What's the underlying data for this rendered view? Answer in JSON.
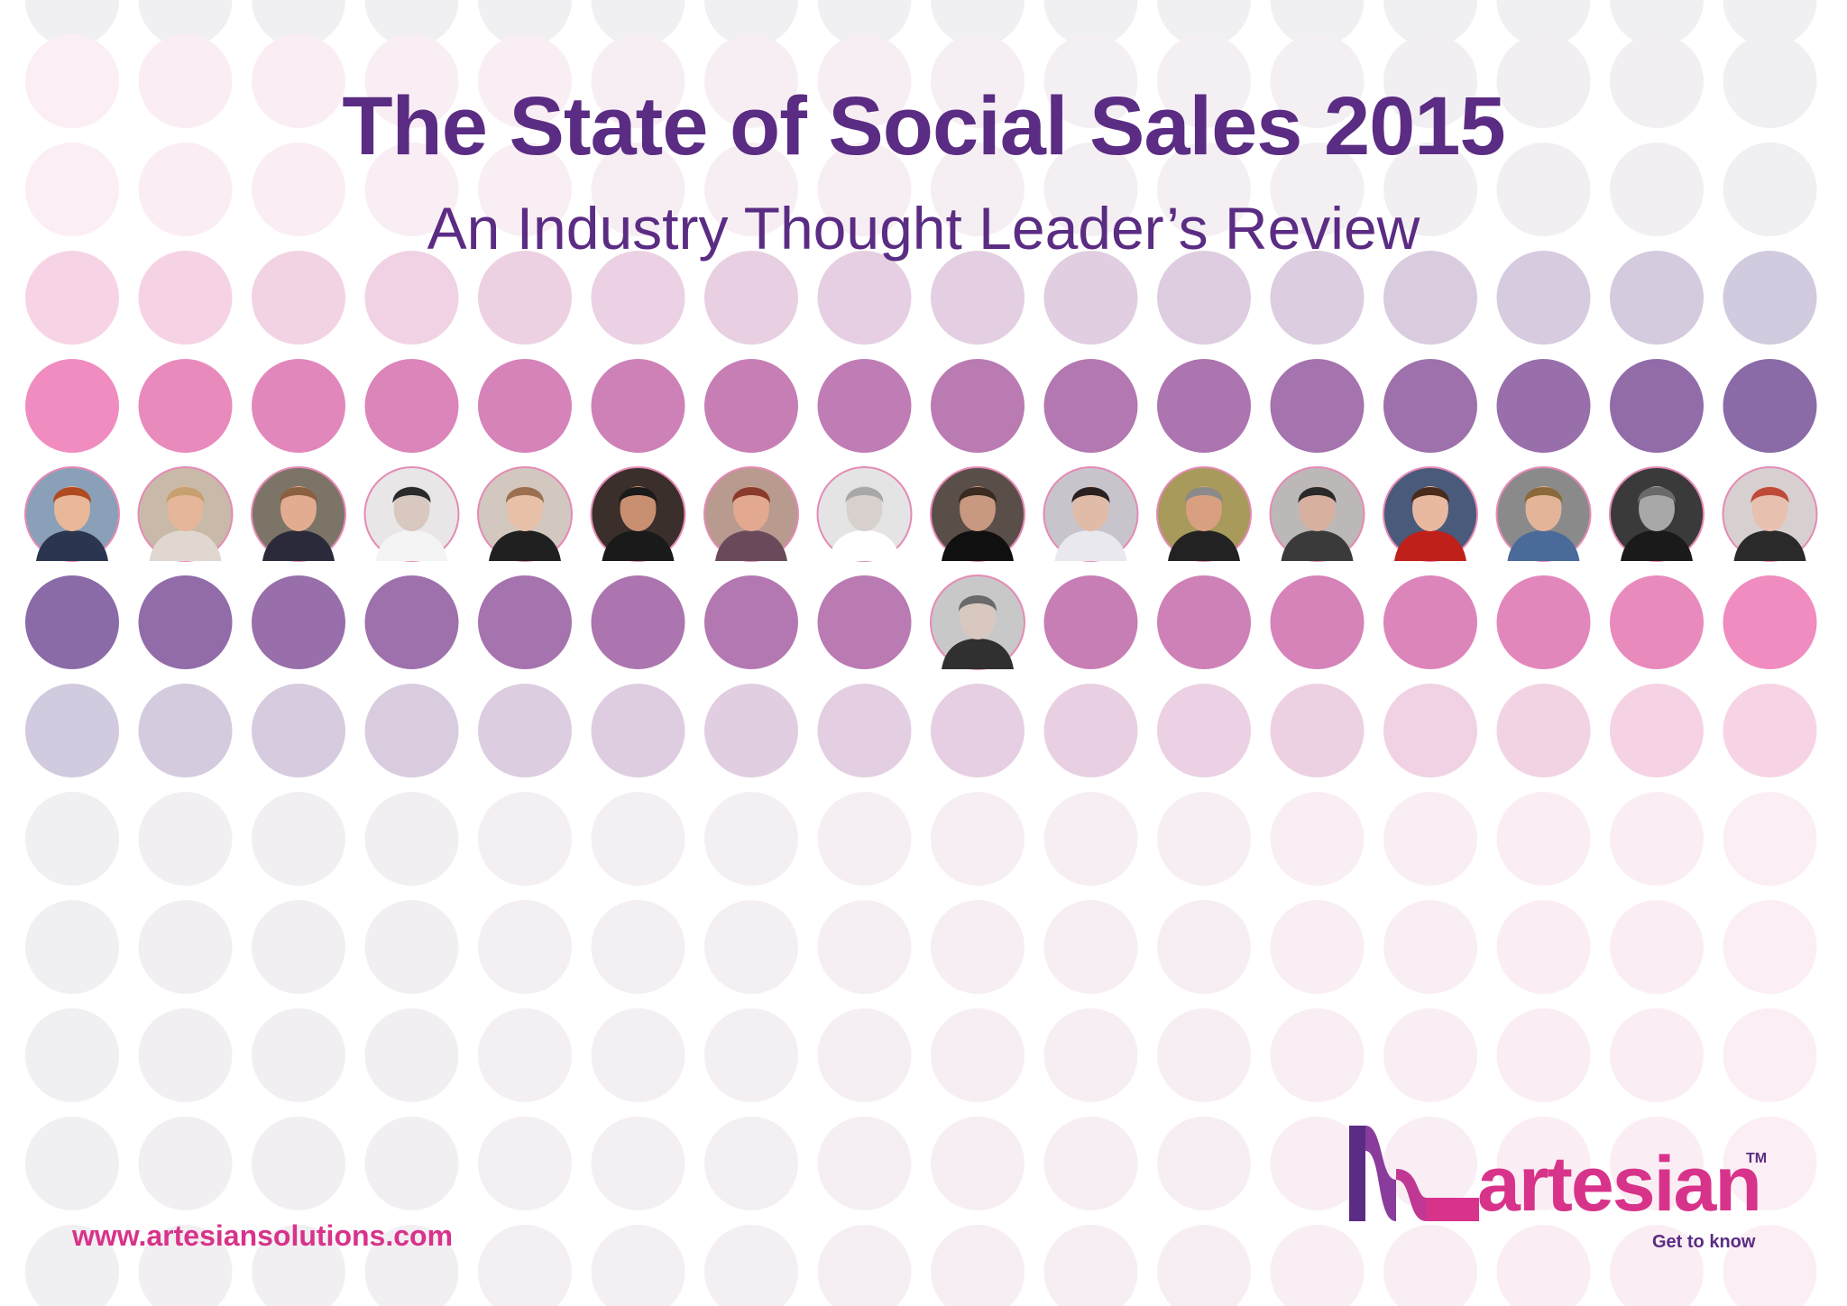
{
  "title": "The State of Social Sales 2015",
  "subtitle": "An Industry Thought Leader’s Review",
  "website": "www.artesiansolutions.com",
  "logo": {
    "wordmark": "artesian",
    "trademark": "TM",
    "tagline": "Get to know"
  },
  "colors": {
    "title": "#5b2c83",
    "accent_pink": "#d8338a",
    "deep_pink": "#f08cbf",
    "deep_purple": "#8a6aa7",
    "light_pink": "#f7d4e5",
    "light_purple": "#d2cade",
    "faint_pink": "#fbeef4",
    "faint_gray": "#f0eff2"
  },
  "portrait_count": 17
}
